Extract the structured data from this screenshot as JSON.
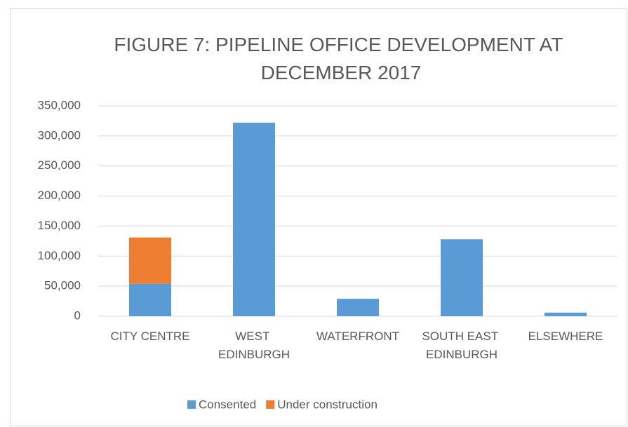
{
  "chart_data": {
    "type": "bar",
    "stacked": true,
    "title": "FIGURE 7: PIPELINE OFFICE DEVELOPMENT AT DECEMBER 2017",
    "categories": [
      "CITY CENTRE",
      "WEST EDINBURGH",
      "WATERFRONT",
      "SOUTH EAST EDINBURGH",
      "ELSEWHERE"
    ],
    "series": [
      {
        "name": "Consented",
        "color": "#5b9bd5",
        "values": [
          54000,
          322000,
          29000,
          128000,
          6000
        ]
      },
      {
        "name": "Under construction",
        "color": "#ed7d31",
        "values": [
          77000,
          0,
          0,
          0,
          0
        ]
      }
    ],
    "ylim": [
      0,
      350000
    ],
    "yticks": [
      0,
      {
        "value": 50000,
        "label": "50,000"
      },
      {
        "value": 100000,
        "label": "100,000"
      },
      {
        "value": 150000,
        "label": "150,000"
      },
      {
        "value": 200000,
        "label": "200,000"
      },
      {
        "value": 250000,
        "label": "250,000"
      },
      {
        "value": 300000,
        "label": "300,000"
      },
      {
        "value": 350000,
        "label": "350,000"
      }
    ],
    "grid": true,
    "legend": "bottom"
  }
}
